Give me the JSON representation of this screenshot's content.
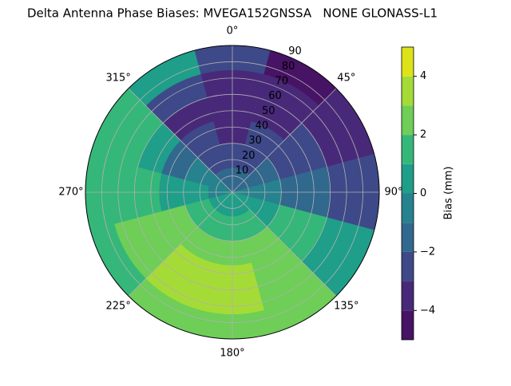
{
  "chart_data": {
    "type": "polar-contour",
    "title": "Delta Antenna Phase Biases: MVEGA152GNSSA   NONE GLONASS-L1",
    "azimuth": [
      0,
      30,
      60,
      90,
      120,
      150,
      180,
      210,
      240,
      270,
      300,
      330
    ],
    "zenith_edges": [
      0,
      15,
      30,
      45,
      60,
      75,
      90
    ],
    "values": [
      [
        -1,
        -2,
        -3,
        -3.5,
        -3.5,
        -2.5
      ],
      [
        -1,
        -2,
        -2.5,
        -3,
        -3.5,
        -4
      ],
      [
        -1,
        -1.5,
        -2,
        -2.5,
        -3,
        -3.5
      ],
      [
        0,
        -0.5,
        -1,
        -1.5,
        -2,
        -2.5
      ],
      [
        0.5,
        1,
        1.5,
        1.5,
        1,
        0.5
      ],
      [
        0.5,
        1.5,
        2.5,
        2.5,
        2.5,
        2.5
      ],
      [
        0.5,
        1.5,
        2.5,
        3.5,
        3.5,
        2.5
      ],
      [
        0.5,
        1.5,
        2.5,
        3.5,
        3.5,
        2.5
      ],
      [
        0.5,
        1.5,
        2.5,
        2.5,
        2.5,
        1.5
      ],
      [
        0,
        0.5,
        1,
        1.5,
        1.5,
        1.5
      ],
      [
        -0.5,
        -0.5,
        -1,
        0.5,
        1.5,
        2
      ],
      [
        -1,
        -2,
        -2.5,
        -3,
        -2.5,
        0.5
      ]
    ],
    "rlim": [
      0,
      90
    ],
    "rticks": [
      10,
      20,
      30,
      40,
      50,
      60,
      70,
      80,
      90
    ],
    "thetaticks": [
      {
        "value": 0,
        "label": "0°"
      },
      {
        "value": 45,
        "label": "45°"
      },
      {
        "value": 90,
        "label": "90°"
      },
      {
        "value": 135,
        "label": "135°"
      },
      {
        "value": 180,
        "label": "180°"
      },
      {
        "value": 225,
        "label": "225°"
      },
      {
        "value": 270,
        "label": "270°"
      },
      {
        "value": 315,
        "label": "315°"
      }
    ],
    "levels": [
      -5,
      -4,
      -3,
      -2,
      -1,
      0,
      1,
      2,
      3,
      4,
      5
    ],
    "colors": [
      "#471365",
      "#482979",
      "#3e4989",
      "#31688e",
      "#26828e",
      "#1f9e89",
      "#35b779",
      "#6ece58",
      "#a5db36",
      "#dde318"
    ],
    "colorbar_label": "Bias (mm)",
    "colorbar_ticks": [
      {
        "value": -4,
        "label": "−4"
      },
      {
        "value": -2,
        "label": "−2"
      },
      0,
      2,
      4
    ],
    "grid": true
  }
}
